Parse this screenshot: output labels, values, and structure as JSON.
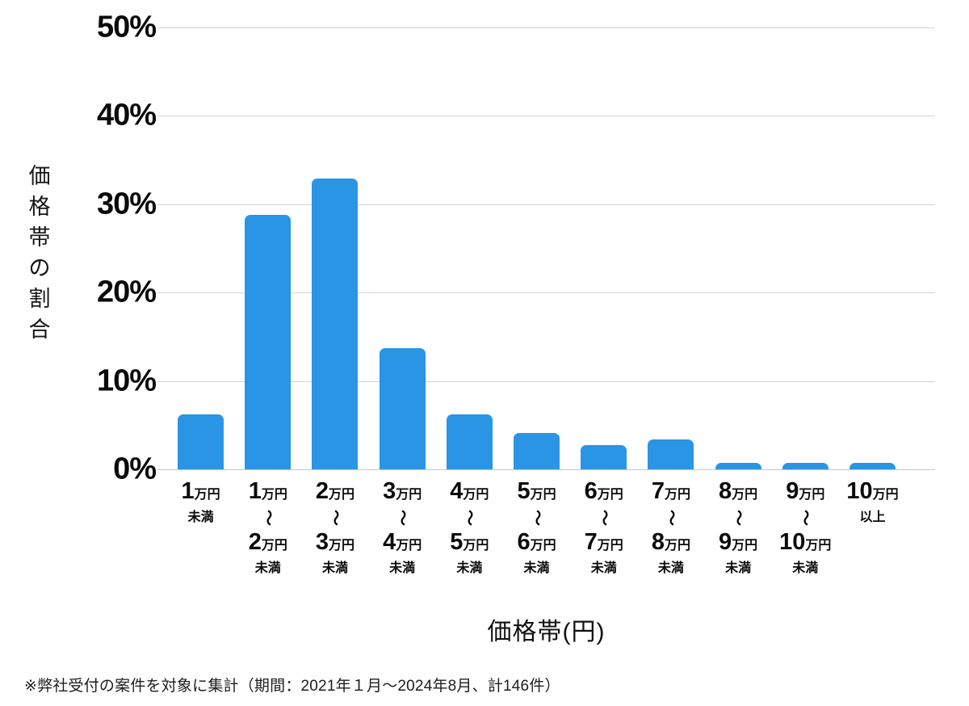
{
  "chart_data": {
    "type": "bar",
    "title": "",
    "xlabel": "価格帯(円)",
    "ylabel": "価格帯の割合",
    "ylim": [
      0,
      50
    ],
    "ytick_labels": [
      "0%",
      "10%",
      "20%",
      "30%",
      "40%",
      "50%"
    ],
    "grid": "horizontal",
    "legend": "none",
    "bar_color": "#2A95E5",
    "unit": "万円",
    "range_separator": "〜",
    "categories": [
      "1万円未満",
      "1万円〜2万円未満",
      "2万円〜3万円未満",
      "3万円〜4万円未満",
      "4万円〜5万円未満",
      "5万円〜6万円未満",
      "6万円〜7万円未満",
      "7万円〜8万円未満",
      "8万円〜9万円未満",
      "9万円〜10万円未満",
      "10万円以上"
    ],
    "x_labels": [
      {
        "from": "1",
        "to": "",
        "tail": "未満"
      },
      {
        "from": "1",
        "to": "2",
        "tail": "未満"
      },
      {
        "from": "2",
        "to": "3",
        "tail": "未満"
      },
      {
        "from": "3",
        "to": "4",
        "tail": "未満"
      },
      {
        "from": "4",
        "to": "5",
        "tail": "未満"
      },
      {
        "from": "5",
        "to": "6",
        "tail": "未満"
      },
      {
        "from": "6",
        "to": "7",
        "tail": "未満"
      },
      {
        "from": "7",
        "to": "8",
        "tail": "未満"
      },
      {
        "from": "8",
        "to": "9",
        "tail": "未満"
      },
      {
        "from": "9",
        "to": "10",
        "tail": "未満"
      },
      {
        "from": "10",
        "to": "",
        "tail": "以上"
      }
    ],
    "values": [
      6.2,
      28.8,
      32.9,
      13.7,
      6.2,
      4.1,
      2.7,
      3.4,
      0.7,
      0.7,
      0.7
    ]
  },
  "footnote": "※弊社受付の案件を対象に集計（期間：2021年１月～2024年8月、計146件）",
  "colors": {
    "bar": "#2A95E5",
    "gridline": "#d4d4d4",
    "baseline": "#c6c6c6",
    "text": "#0b0b0b"
  }
}
